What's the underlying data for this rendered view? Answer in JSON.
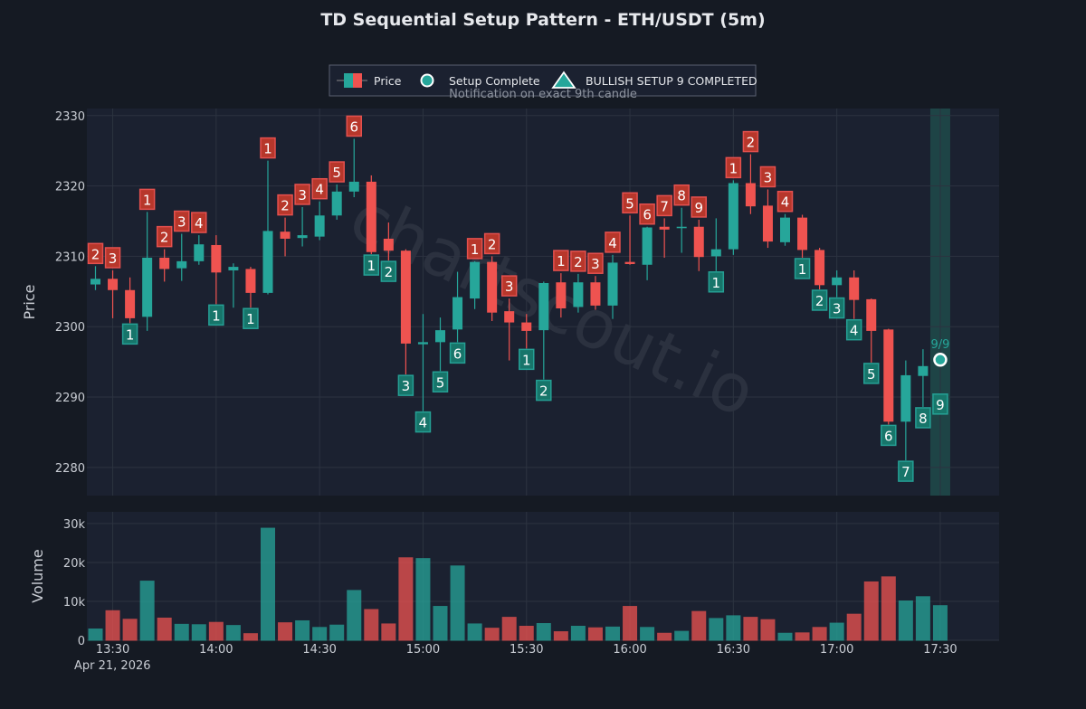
{
  "chart_data": {
    "type": "candlestick",
    "title": "TD Sequential Setup Pattern - ETH/USDT (5m)",
    "date_label": "Apr 21, 2026",
    "price_panel": {
      "ylabel": "Price",
      "ylim": [
        2276,
        2331
      ],
      "yticks": [
        2280,
        2290,
        2300,
        2310,
        2320,
        2330
      ],
      "ytick_labels": [
        "2280",
        "2290",
        "2300",
        "2310",
        "2320",
        "2330"
      ]
    },
    "volume_panel": {
      "ylabel": "Volume",
      "ylim": [
        0,
        33000
      ],
      "yticks": [
        0,
        10000,
        20000,
        30000
      ],
      "ytick_labels": [
        "0",
        "10k",
        "20k",
        "30k"
      ]
    },
    "xaxis": {
      "start": "13:25",
      "step_minutes": 5,
      "ticks": [
        "13:30",
        "14:00",
        "14:30",
        "15:00",
        "15:30",
        "16:00",
        "16:30",
        "17:00",
        "17:30"
      ]
    },
    "legend": {
      "placement": "top-center",
      "items": [
        "Price",
        "Setup Complete",
        "BULLISH SETUP 9 COMPLETED"
      ],
      "subtitle": "Notification on exact 9th candle"
    },
    "watermark": "chartscout.io",
    "completion": {
      "time": "17:30",
      "price": 2295.3,
      "label": "9/9"
    },
    "colors": {
      "up": "#26a69a",
      "down": "#ef5350",
      "highlight": "#1f4a4a",
      "grid": "#2c3340",
      "panel": "#1b2130",
      "background": "#151a23"
    },
    "candles": [
      {
        "t": "13:25",
        "o": 2306.0,
        "h": 2308.6,
        "l": 2305.2,
        "c": 2306.8,
        "v": 2900,
        "setup": "sell",
        "n": "2"
      },
      {
        "t": "13:30",
        "o": 2306.8,
        "h": 2308.0,
        "l": 2301.2,
        "c": 2305.2,
        "v": 7600,
        "setup": "sell",
        "n": "3"
      },
      {
        "t": "13:35",
        "o": 2305.2,
        "h": 2307.0,
        "l": 2300.5,
        "c": 2301.2,
        "v": 5400,
        "setup": "buy",
        "n": "1"
      },
      {
        "t": "13:40",
        "o": 2301.4,
        "h": 2316.3,
        "l": 2299.4,
        "c": 2309.8,
        "v": 15200,
        "setup": "sell",
        "n": "1"
      },
      {
        "t": "13:45",
        "o": 2309.8,
        "h": 2311.0,
        "l": 2306.4,
        "c": 2308.2,
        "v": 5700,
        "setup": "sell",
        "n": "2"
      },
      {
        "t": "13:50",
        "o": 2308.3,
        "h": 2313.2,
        "l": 2306.5,
        "c": 2309.3,
        "v": 4100,
        "setup": "sell",
        "n": "3"
      },
      {
        "t": "13:55",
        "o": 2309.3,
        "h": 2313.0,
        "l": 2308.8,
        "c": 2311.7,
        "v": 4000,
        "setup": "sell",
        "n": "4"
      },
      {
        "t": "14:00",
        "o": 2311.6,
        "h": 2313.0,
        "l": 2303.2,
        "c": 2307.7,
        "v": 4600,
        "setup": "buy",
        "n": "1"
      },
      {
        "t": "14:05",
        "o": 2308.0,
        "h": 2309.0,
        "l": 2302.7,
        "c": 2308.5,
        "v": 3800,
        "setup": "",
        "n": ""
      },
      {
        "t": "14:10",
        "o": 2308.2,
        "h": 2308.5,
        "l": 2302.7,
        "c": 2304.8,
        "v": 1700,
        "setup": "buy",
        "n": "1"
      },
      {
        "t": "14:15",
        "o": 2304.8,
        "h": 2323.6,
        "l": 2304.6,
        "c": 2313.6,
        "v": 28800,
        "setup": "sell",
        "n": "1"
      },
      {
        "t": "14:20",
        "o": 2313.5,
        "h": 2315.5,
        "l": 2310.0,
        "c": 2312.5,
        "v": 4500,
        "setup": "sell",
        "n": "2"
      },
      {
        "t": "14:25",
        "o": 2312.6,
        "h": 2317.0,
        "l": 2311.4,
        "c": 2313.0,
        "v": 5000,
        "setup": "sell",
        "n": "3"
      },
      {
        "t": "14:30",
        "o": 2312.8,
        "h": 2317.8,
        "l": 2312.3,
        "c": 2315.8,
        "v": 3300,
        "setup": "sell",
        "n": "4"
      },
      {
        "t": "14:35",
        "o": 2315.8,
        "h": 2320.2,
        "l": 2315.2,
        "c": 2319.2,
        "v": 3900,
        "setup": "sell",
        "n": "5"
      },
      {
        "t": "14:40",
        "o": 2319.2,
        "h": 2326.7,
        "l": 2318.4,
        "c": 2320.6,
        "v": 12800,
        "setup": "sell",
        "n": "6"
      },
      {
        "t": "14:45",
        "o": 2320.6,
        "h": 2321.5,
        "l": 2310.3,
        "c": 2310.6,
        "v": 7900,
        "setup": "buy",
        "n": "1"
      },
      {
        "t": "14:50",
        "o": 2312.5,
        "h": 2314.8,
        "l": 2309.4,
        "c": 2310.8,
        "v": 4200,
        "setup": "buy",
        "n": "2"
      },
      {
        "t": "14:55",
        "o": 2310.8,
        "h": 2311.0,
        "l": 2293.2,
        "c": 2297.6,
        "v": 21200,
        "setup": "buy",
        "n": "3"
      },
      {
        "t": "15:00",
        "o": 2297.5,
        "h": 2301.8,
        "l": 2288.0,
        "c": 2297.8,
        "v": 21000,
        "setup": "buy",
        "n": "4"
      },
      {
        "t": "15:05",
        "o": 2297.8,
        "h": 2301.3,
        "l": 2293.7,
        "c": 2299.5,
        "v": 8700,
        "setup": "buy",
        "n": "5"
      },
      {
        "t": "15:10",
        "o": 2299.6,
        "h": 2307.8,
        "l": 2297.8,
        "c": 2304.2,
        "v": 19100,
        "setup": "buy",
        "n": "6"
      },
      {
        "t": "15:15",
        "o": 2304.0,
        "h": 2309.3,
        "l": 2302.5,
        "c": 2309.2,
        "v": 4200,
        "setup": "sell",
        "n": "1"
      },
      {
        "t": "15:20",
        "o": 2309.2,
        "h": 2310.0,
        "l": 2300.8,
        "c": 2302.0,
        "v": 3100,
        "setup": "sell",
        "n": "2"
      },
      {
        "t": "15:25",
        "o": 2302.2,
        "h": 2304.0,
        "l": 2295.2,
        "c": 2300.6,
        "v": 5900,
        "setup": "sell",
        "n": "3"
      },
      {
        "t": "15:30",
        "o": 2300.6,
        "h": 2301.8,
        "l": 2296.9,
        "c": 2299.4,
        "v": 3600,
        "setup": "buy",
        "n": "1"
      },
      {
        "t": "15:35",
        "o": 2299.5,
        "h": 2306.4,
        "l": 2292.5,
        "c": 2306.2,
        "v": 4300,
        "setup": "buy",
        "n": "2"
      },
      {
        "t": "15:40",
        "o": 2306.3,
        "h": 2307.6,
        "l": 2301.3,
        "c": 2302.6,
        "v": 2200,
        "setup": "sell",
        "n": "1"
      },
      {
        "t": "15:45",
        "o": 2302.8,
        "h": 2307.5,
        "l": 2302.0,
        "c": 2306.3,
        "v": 3600,
        "setup": "sell",
        "n": "2"
      },
      {
        "t": "15:50",
        "o": 2306.3,
        "h": 2307.2,
        "l": 2302.4,
        "c": 2303.0,
        "v": 3200,
        "setup": "sell",
        "n": "3"
      },
      {
        "t": "15:55",
        "o": 2303.0,
        "h": 2310.2,
        "l": 2301.1,
        "c": 2309.1,
        "v": 3400,
        "setup": "sell",
        "n": "4"
      },
      {
        "t": "16:00",
        "o": 2309.2,
        "h": 2315.8,
        "l": 2308.8,
        "c": 2308.9,
        "v": 8700,
        "setup": "sell",
        "n": "5"
      },
      {
        "t": "16:05",
        "o": 2308.8,
        "h": 2314.2,
        "l": 2306.6,
        "c": 2314.1,
        "v": 3300,
        "setup": "sell",
        "n": "6"
      },
      {
        "t": "16:10",
        "o": 2314.2,
        "h": 2315.4,
        "l": 2309.8,
        "c": 2313.8,
        "v": 1800,
        "setup": "sell",
        "n": "7"
      },
      {
        "t": "16:15",
        "o": 2314.0,
        "h": 2316.9,
        "l": 2310.5,
        "c": 2314.2,
        "v": 2300,
        "setup": "sell",
        "n": "8"
      },
      {
        "t": "16:20",
        "o": 2314.2,
        "h": 2315.2,
        "l": 2307.9,
        "c": 2309.9,
        "v": 7400,
        "setup": "sell",
        "n": "9"
      },
      {
        "t": "16:25",
        "o": 2310.0,
        "h": 2315.4,
        "l": 2307.9,
        "c": 2311.0,
        "v": 5600,
        "setup": "buy",
        "n": "1"
      },
      {
        "t": "16:30",
        "o": 2311.0,
        "h": 2320.8,
        "l": 2310.2,
        "c": 2320.4,
        "v": 6300,
        "setup": "sell",
        "n": "1"
      },
      {
        "t": "16:35",
        "o": 2320.4,
        "h": 2324.5,
        "l": 2316.0,
        "c": 2317.1,
        "v": 5900,
        "setup": "sell",
        "n": "2"
      },
      {
        "t": "16:40",
        "o": 2317.2,
        "h": 2319.5,
        "l": 2311.2,
        "c": 2312.1,
        "v": 5300,
        "setup": "sell",
        "n": "3"
      },
      {
        "t": "16:45",
        "o": 2312.0,
        "h": 2316.0,
        "l": 2311.5,
        "c": 2315.5,
        "v": 1800,
        "setup": "sell",
        "n": "4"
      },
      {
        "t": "16:50",
        "o": 2315.5,
        "h": 2315.9,
        "l": 2309.8,
        "c": 2310.9,
        "v": 1900,
        "setup": "buy",
        "n": "1"
      },
      {
        "t": "16:55",
        "o": 2310.9,
        "h": 2311.2,
        "l": 2305.3,
        "c": 2305.9,
        "v": 3300,
        "setup": "buy",
        "n": "2"
      },
      {
        "t": "17:00",
        "o": 2305.9,
        "h": 2308.0,
        "l": 2304.2,
        "c": 2307.0,
        "v": 4400,
        "setup": "buy",
        "n": "3"
      },
      {
        "t": "17:05",
        "o": 2307.0,
        "h": 2308.0,
        "l": 2301.1,
        "c": 2303.8,
        "v": 6700,
        "setup": "buy",
        "n": "4"
      },
      {
        "t": "17:10",
        "o": 2303.9,
        "h": 2304.0,
        "l": 2294.9,
        "c": 2299.4,
        "v": 15000,
        "setup": "buy",
        "n": "5"
      },
      {
        "t": "17:15",
        "o": 2299.6,
        "h": 2299.7,
        "l": 2286.1,
        "c": 2286.5,
        "v": 16300,
        "setup": "buy",
        "n": "6"
      },
      {
        "t": "17:20",
        "o": 2286.5,
        "h": 2295.2,
        "l": 2281.0,
        "c": 2293.1,
        "v": 10100,
        "setup": "buy",
        "n": "7"
      },
      {
        "t": "17:25",
        "o": 2293.0,
        "h": 2296.8,
        "l": 2288.6,
        "c": 2294.4,
        "v": 11200,
        "setup": "buy",
        "n": "8"
      },
      {
        "t": "17:30",
        "o": 2294.4,
        "h": 2294.4,
        "l": 2294.4,
        "c": 2294.4,
        "v": 8900,
        "setup": "buy",
        "n": "9"
      }
    ]
  }
}
